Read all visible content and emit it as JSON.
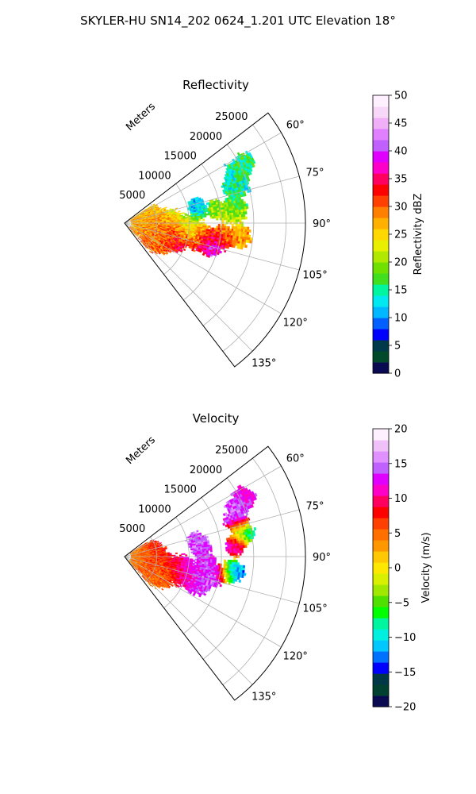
{
  "figure": {
    "suptitle": "SKYLER-HU  SN14_202  0624_1.201 UTC Elevation 18°"
  },
  "chart_data": [
    {
      "type": "polar-sector-image",
      "title": "Reflectivity",
      "radial_label": "Meters",
      "radial_ticks": [
        "5000",
        "10000",
        "15000",
        "20000",
        "25000"
      ],
      "radial_tick_values": [
        5000,
        10000,
        15000,
        20000,
        25000
      ],
      "rmax": 28000,
      "angle_ticks": [
        "60°",
        "75°",
        "90°",
        "105°",
        "120°",
        "135°"
      ],
      "angle_tick_values": [
        60,
        75,
        90,
        105,
        120,
        135
      ],
      "theta_range": [
        52.5,
        142.5
      ],
      "grid": true,
      "colorbar": {
        "label": "Reflectivity dBZ",
        "ticks": [
          "0",
          "5",
          "10",
          "15",
          "20",
          "25",
          "30",
          "35",
          "40",
          "45",
          "50"
        ],
        "tick_values": [
          0,
          5,
          10,
          15,
          20,
          25,
          30,
          35,
          40,
          45,
          50
        ],
        "vmin": 0,
        "vmax": 50,
        "colors": [
          "#0a0a52",
          "#004a2a",
          "#003a4a",
          "#0000ff",
          "#0060ff",
          "#00b8ff",
          "#00e8f0",
          "#00f5a0",
          "#40e020",
          "#70e000",
          "#b0e800",
          "#e8f000",
          "#ffd800",
          "#ffb000",
          "#ff8000",
          "#ff4000",
          "#ff0000",
          "#ff0060",
          "#ff00c8",
          "#e000ff",
          "#c060ff",
          "#e080ff",
          "#f0b0f8",
          "#f8d8f8",
          "#fff0ff"
        ]
      },
      "echo_cells": [
        {
          "theta": 63,
          "r": 20500,
          "dz": 16,
          "spread": 1200
        },
        {
          "theta": 66,
          "r": 18800,
          "dz": 15,
          "spread": 1400
        },
        {
          "theta": 71,
          "r": 18000,
          "dz": 14,
          "spread": 1500
        },
        {
          "theta": 76,
          "r": 11300,
          "dz": 10,
          "spread": 900
        },
        {
          "theta": 80,
          "r": 11600,
          "dz": 12,
          "spread": 1000
        },
        {
          "theta": 81,
          "r": 14200,
          "dz": 20,
          "spread": 1100
        },
        {
          "theta": 83,
          "r": 17000,
          "dz": 19,
          "spread": 1500
        },
        {
          "theta": 77,
          "r": 4200,
          "dz": 24,
          "spread": 1400
        },
        {
          "theta": 86,
          "r": 3500,
          "dz": 26,
          "spread": 1700
        },
        {
          "theta": 90,
          "r": 4500,
          "dz": 27,
          "spread": 1600
        },
        {
          "theta": 93,
          "r": 7000,
          "dz": 22,
          "spread": 1900
        },
        {
          "theta": 100,
          "r": 5200,
          "dz": 33,
          "spread": 1700
        },
        {
          "theta": 105,
          "r": 6000,
          "dz": 34,
          "spread": 1800
        },
        {
          "theta": 108,
          "r": 8300,
          "dz": 40,
          "spread": 1300
        },
        {
          "theta": 111,
          "r": 5200,
          "dz": 29,
          "spread": 1700
        },
        {
          "theta": 115,
          "r": 6300,
          "dz": 27,
          "spread": 1500
        },
        {
          "theta": 100,
          "r": 11800,
          "dz": 30,
          "spread": 1600
        },
        {
          "theta": 104,
          "r": 13600,
          "dz": 42,
          "spread": 1200
        },
        {
          "theta": 98,
          "r": 15200,
          "dz": 31,
          "spread": 1500
        },
        {
          "theta": 96,
          "r": 17800,
          "dz": 27,
          "spread": 1300
        },
        {
          "theta": 94,
          "r": 10000,
          "dz": 21,
          "spread": 1500
        }
      ]
    },
    {
      "type": "polar-sector-image",
      "title": "Velocity",
      "radial_label": "Meters",
      "radial_ticks": [
        "5000",
        "10000",
        "15000",
        "20000",
        "25000"
      ],
      "radial_tick_values": [
        5000,
        10000,
        15000,
        20000,
        25000
      ],
      "rmax": 28000,
      "angle_ticks": [
        "60°",
        "75°",
        "90°",
        "105°",
        "120°",
        "135°"
      ],
      "angle_tick_values": [
        60,
        75,
        90,
        105,
        120,
        135
      ],
      "theta_range": [
        52.5,
        142.5
      ],
      "grid": true,
      "colorbar": {
        "label": "Velocity (m/s)",
        "ticks": [
          "−20",
          "−15",
          "−10",
          "−5",
          "0",
          "5",
          "10",
          "15",
          "20"
        ],
        "tick_values": [
          -20,
          -15,
          -10,
          -5,
          0,
          5,
          10,
          15,
          20
        ],
        "vmin": -20,
        "vmax": 20,
        "colors": [
          "#0a0a52",
          "#004030",
          "#003848",
          "#0000ff",
          "#0070ff",
          "#00c8ff",
          "#00f0e0",
          "#00f5a0",
          "#00ff00",
          "#50e000",
          "#a0e800",
          "#d8f000",
          "#ffe800",
          "#ffc800",
          "#ff9800",
          "#ff7000",
          "#ff4000",
          "#ff0000",
          "#ff0060",
          "#ff00c8",
          "#e000ff",
          "#c060ff",
          "#e090ff",
          "#f0c0f8",
          "#fff0ff"
        ]
      },
      "echo_cells": [
        {
          "theta": 63,
          "r": 20500,
          "v": 12,
          "spread": 1200
        },
        {
          "theta": 66,
          "r": 19000,
          "v": 14,
          "spread": 1300
        },
        {
          "theta": 71,
          "r": 18000,
          "v": 16,
          "spread": 1300
        },
        {
          "theta": 78,
          "r": 18500,
          "v": -10,
          "spread": 1300
        },
        {
          "theta": 84,
          "r": 17200,
          "v": 15,
          "spread": 1100
        },
        {
          "theta": 77,
          "r": 11200,
          "v": 15,
          "spread": 1000
        },
        {
          "theta": 82,
          "r": 11800,
          "v": 14,
          "spread": 1100
        },
        {
          "theta": 86,
          "r": 4200,
          "v": 8,
          "spread": 1600
        },
        {
          "theta": 92,
          "r": 3000,
          "v": 2,
          "spread": 1700
        },
        {
          "theta": 100,
          "r": 5000,
          "v": 8,
          "spread": 1800
        },
        {
          "theta": 105,
          "r": 6000,
          "v": 10,
          "spread": 1800
        },
        {
          "theta": 112,
          "r": 5200,
          "v": 3,
          "spread": 1700
        },
        {
          "theta": 116,
          "r": 6300,
          "v": 2,
          "spread": 1500
        },
        {
          "theta": 103,
          "r": 9000,
          "v": 11,
          "spread": 1700
        },
        {
          "theta": 106,
          "r": 12000,
          "v": 13,
          "spread": 1700
        },
        {
          "theta": 101,
          "r": 13800,
          "v": 16,
          "spread": 1400
        },
        {
          "theta": 97,
          "r": 16800,
          "v": -12,
          "spread": 1300
        },
        {
          "theta": 95,
          "r": 12600,
          "v": 13,
          "spread": 1300
        }
      ]
    }
  ]
}
